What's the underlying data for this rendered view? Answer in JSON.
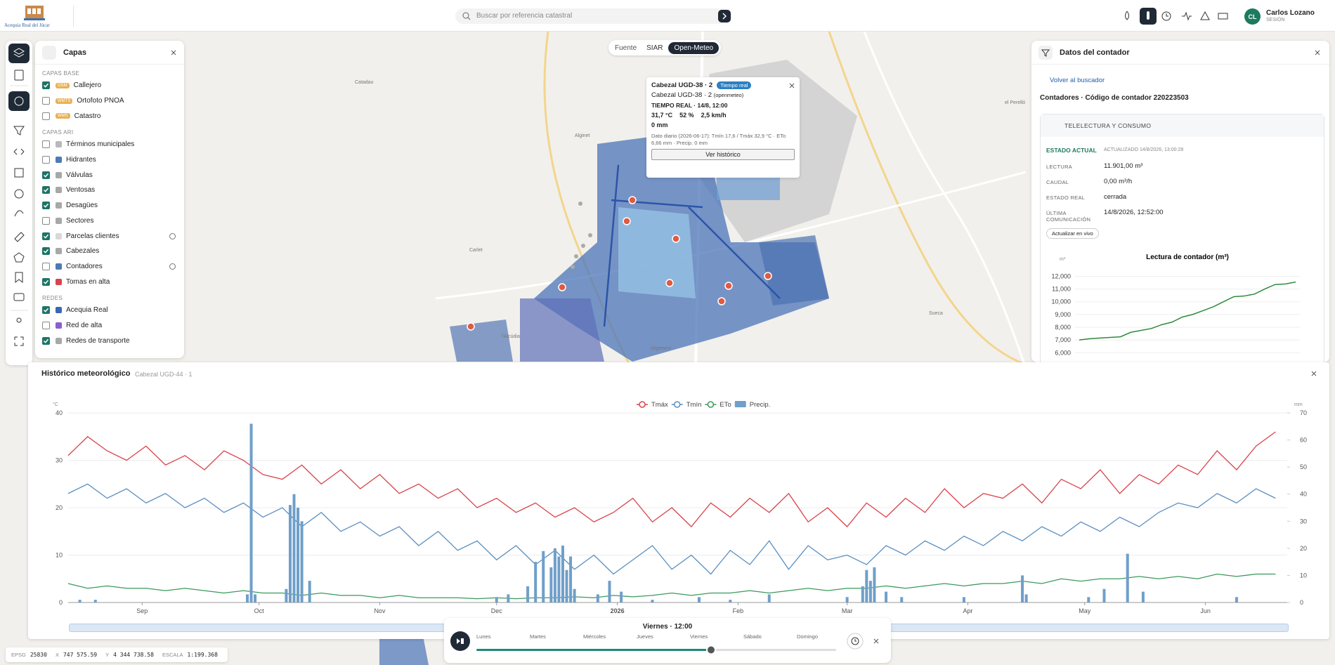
{
  "header": {
    "logo_text": "Acequia Real del Júcar",
    "search_placeholder": "Buscar por referencia catastral",
    "user_initials": "CL",
    "user_name": "Carlos Lozano",
    "user_role": "SESIÓN"
  },
  "layers": {
    "title": "Capas",
    "groups": [
      {
        "title": "CAPAS BASE",
        "items": [
          {
            "label": "Callejero",
            "tag": "OSM",
            "checked": true
          },
          {
            "label": "Ortofoto PNOA",
            "tag": "WMTS",
            "checked": false
          },
          {
            "label": "Catastro",
            "tag": "WMS",
            "checked": false
          }
        ]
      },
      {
        "title": "CAPAS ARI",
        "items": [
          {
            "label": "Términos municipales",
            "color": "#b9b9b9",
            "checked": false
          },
          {
            "label": "Hidrantes",
            "color": "#4a7bb7",
            "checked": false
          },
          {
            "label": "Válvulas",
            "color": "#a8a8a8",
            "checked": true
          },
          {
            "label": "Ventosas",
            "color": "#a8a8a8",
            "checked": true
          },
          {
            "label": "Desagües",
            "color": "#a8a8a8",
            "checked": true
          },
          {
            "label": "Sectores",
            "color": "#a8a8a8",
            "checked": false
          },
          {
            "label": "Parcelas clientes",
            "color": "#d9d9d9",
            "checked": true,
            "filter": true
          },
          {
            "label": "Cabezales",
            "color": "#a8a8a8",
            "checked": true
          },
          {
            "label": "Contadores",
            "color": "#4a7bb7",
            "checked": false,
            "filter": true
          },
          {
            "label": "Tomas en alta",
            "color": "#d9434b",
            "checked": true
          }
        ]
      },
      {
        "title": "REDES",
        "items": [
          {
            "label": "Acequia Real",
            "color": "#3a66b5",
            "checked": true
          },
          {
            "label": "Red de alta",
            "color": "#8a5fd0",
            "checked": false
          },
          {
            "label": "Redes de transporte",
            "color": "#a8a8a8",
            "checked": true
          }
        ]
      }
    ]
  },
  "map": {
    "source_label": "Fuente",
    "sources": [
      "SIAR",
      "Open-Meteo"
    ],
    "active_source": "Open-Meteo",
    "places": [
      {
        "name": "Catadau",
        "left": 505,
        "top": 114
      },
      {
        "name": "Alginet",
        "left": 818,
        "top": 190
      },
      {
        "name": "Carlet",
        "left": 668,
        "top": 353
      },
      {
        "name": "l'Alcúdia",
        "left": 714,
        "top": 476
      },
      {
        "name": "Algemesí",
        "left": 926,
        "top": 493
      },
      {
        "name": "Sueca",
        "left": 1322,
        "top": 443
      },
      {
        "name": "el Perelló",
        "left": 1430,
        "top": 143
      }
    ]
  },
  "popup": {
    "title": "Cabezal UGD-38 · 2",
    "badge": "Tiempo real",
    "subtitle": "Cabezal UGD-38 · 2",
    "subtitle_note": "(openmeteo)",
    "realtime": "TIEMPO REAL · 14/8, 12:00",
    "temperature": "31,7 °C",
    "humidity": "52 %",
    "wind": "2,5 km/h",
    "rain": "0 mm",
    "daily": "Dato diario (2026-06-17): Tmín 17,6 / Tmáx 32,9 °C · ETo 6,66 mm · Precip. 0 mm",
    "button": "Ver histórico"
  },
  "meter_panel": {
    "title": "Datos del contador",
    "back": "Volver al buscador",
    "heading": "Contadores · Código de contador 220223503",
    "section": "TELELECTURA Y CONSUMO",
    "status": "ESTADO ACTUAL",
    "updated": "ACTUALIZADO 14/8/2026, 13:00:28",
    "fields": [
      {
        "label": "LECTURA",
        "value": "11.901,00 m³"
      },
      {
        "label": "CAUDAL",
        "value": "0,00 m³/h"
      },
      {
        "label": "ESTADO REAL",
        "value": "cerrada"
      },
      {
        "label": "ÚLTIMA COMUNICACIÓN",
        "value": "14/8/2026, 12:52:00"
      }
    ],
    "button": "Actualizar en vivo",
    "chart": {
      "type": "line",
      "title": "Lectura de contador (m³)",
      "y_label": "m³",
      "color": "#2e8b3e",
      "values": [
        7000,
        7100,
        7150,
        7200,
        7250,
        7600,
        7750,
        7900,
        8200,
        8400,
        8800,
        9000,
        9300,
        9600,
        10000,
        10400,
        10450,
        10600,
        11000,
        11350,
        11400,
        11550
      ],
      "ylim": [
        5850,
        12300
      ],
      "yticks": [
        {
          "value": 6000,
          "label": "6,000"
        },
        {
          "value": 7000,
          "label": "7,000"
        },
        {
          "value": 8000,
          "label": "8,000"
        },
        {
          "value": 9000,
          "label": "9,000"
        },
        {
          "value": 10000,
          "label": "10,000"
        },
        {
          "value": 11000,
          "label": "11,000"
        },
        {
          "value": 12000,
          "label": "12,000"
        }
      ],
      "grid": true
    }
  },
  "weather_panel": {
    "title": "Histórico meteorológico",
    "subtitle": "Cabezal UGD-44 · 1",
    "chart": {
      "type": "line",
      "y_label": "°C",
      "y2_label": "mm",
      "x": [
        0,
        5,
        10,
        15,
        20,
        25,
        30,
        35,
        40,
        45,
        50,
        55,
        60,
        65,
        70,
        75,
        80,
        85,
        90,
        95,
        100,
        105,
        110,
        115,
        120,
        125,
        130,
        135,
        140,
        145,
        150,
        155,
        160,
        165,
        170,
        175,
        180,
        185,
        190,
        195,
        200,
        205,
        210,
        215,
        220,
        225,
        230,
        235,
        240,
        245,
        250,
        255,
        260,
        265,
        270,
        275,
        280,
        285,
        290,
        295,
        300,
        305,
        310
      ],
      "xlim": [
        0,
        313
      ],
      "xticks": [
        {
          "value": 19,
          "label": "Sep"
        },
        {
          "value": 49,
          "label": "Oct"
        },
        {
          "value": 80,
          "label": "Nov"
        },
        {
          "value": 110,
          "label": "Dec"
        },
        {
          "value": 141,
          "label": "2026"
        },
        {
          "value": 172,
          "label": "Feb"
        },
        {
          "value": 200,
          "label": "Mar"
        },
        {
          "value": 231,
          "label": "Apr"
        },
        {
          "value": 261,
          "label": "May"
        },
        {
          "value": 292,
          "label": "Jun"
        }
      ],
      "ylim": [
        0,
        40
      ],
      "yticks": [
        0,
        10,
        20,
        30,
        40
      ],
      "y2lim": [
        0,
        70
      ],
      "y2ticks": [
        0,
        10,
        20,
        30,
        40,
        50,
        60,
        70
      ],
      "grid": true,
      "series": [
        {
          "name": "Tmáx",
          "color": "#d9434b",
          "values": [
            31,
            35,
            32,
            30,
            33,
            29,
            31,
            28,
            32,
            30,
            27,
            26,
            29,
            25,
            28,
            24,
            27,
            23,
            25,
            22,
            24,
            20,
            22,
            19,
            21,
            18,
            20,
            17,
            19,
            22,
            17,
            20,
            16,
            21,
            18,
            22,
            19,
            23,
            17,
            20,
            16,
            21,
            18,
            22,
            19,
            24,
            20,
            23,
            22,
            25,
            21,
            26,
            24,
            28,
            23,
            27,
            25,
            29,
            27,
            32,
            28,
            33,
            36
          ]
        },
        {
          "name": "Tmín",
          "color": "#5a8fc0",
          "values": [
            23,
            25,
            22,
            24,
            21,
            23,
            20,
            22,
            19,
            21,
            18,
            20,
            16,
            19,
            15,
            17,
            14,
            16,
            12,
            15,
            11,
            13,
            9,
            12,
            8,
            11,
            7,
            10,
            6,
            9,
            12,
            7,
            10,
            6,
            11,
            8,
            13,
            7,
            12,
            9,
            10,
            8,
            12,
            10,
            13,
            11,
            14,
            12,
            15,
            13,
            16,
            14,
            17,
            15,
            18,
            16,
            19,
            21,
            20,
            23,
            21,
            24,
            22
          ]
        },
        {
          "name": "ETo",
          "color": "#3a9a5b",
          "values": [
            4,
            3,
            3.5,
            3,
            3,
            2.5,
            3,
            2.5,
            2,
            2.5,
            2,
            2,
            1.5,
            2,
            1.5,
            1.5,
            1,
            1.5,
            1,
            1,
            1,
            0.8,
            1,
            0.8,
            1,
            1,
            1.2,
            1,
            1.5,
            1.2,
            1.5,
            2,
            1.5,
            2,
            2,
            2.5,
            2,
            2.5,
            3,
            2.5,
            3,
            3,
            3.5,
            3,
            3.5,
            4,
            3.5,
            4,
            4,
            4.5,
            4,
            5,
            4.5,
            5,
            5,
            5.5,
            5,
            5.5,
            5,
            6,
            5.5,
            6,
            6
          ]
        },
        {
          "name": "Precip.",
          "type": "bar",
          "axis": "y2",
          "color": "#6f9fca",
          "x": [
            3,
            7,
            46,
            47,
            48,
            56,
            57,
            58,
            59,
            60,
            62,
            110,
            113,
            118,
            120,
            122,
            124,
            125,
            126,
            127,
            128,
            129,
            130,
            136,
            139,
            142,
            150,
            162,
            170,
            180,
            200,
            204,
            205,
            206,
            207,
            210,
            214,
            230,
            245,
            246,
            262,
            266,
            272,
            276,
            300
          ],
          "values": [
            1,
            1,
            3,
            66,
            3,
            5,
            36,
            40,
            35,
            30,
            8,
            2,
            3,
            6,
            15,
            19,
            13,
            20,
            17,
            21,
            12,
            17,
            5,
            3,
            8,
            4,
            1,
            2,
            1,
            3,
            2,
            6,
            12,
            8,
            13,
            4,
            2,
            2,
            10,
            3,
            2,
            5,
            18,
            4,
            2
          ]
        }
      ]
    }
  },
  "player": {
    "title": "Viernes · 12:00",
    "days": [
      "Lunes",
      "Martes",
      "Miércoles",
      "Jueves",
      "Viernes",
      "Sábado",
      "Domingo"
    ]
  },
  "status": [
    {
      "label": "EPSG",
      "value": "25830"
    },
    {
      "label": "X",
      "value": "747 575.59"
    },
    {
      "label": "Y",
      "value": "4 344 738.58"
    },
    {
      "label": "ESCALA",
      "value": "1:199.368"
    }
  ]
}
